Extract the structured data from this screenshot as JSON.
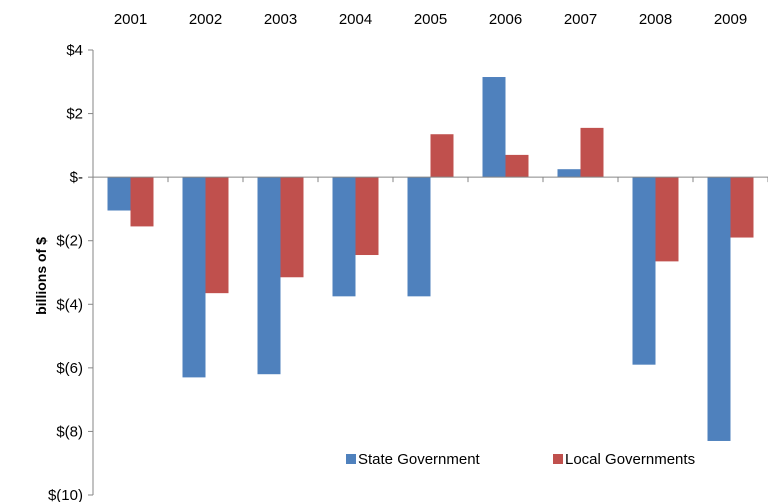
{
  "chart_data": {
    "type": "bar",
    "categories": [
      "2001",
      "2002",
      "2003",
      "2004",
      "2005",
      "2006",
      "2007",
      "2008",
      "2009"
    ],
    "series": [
      {
        "name": "State Government",
        "color": "#4f81bd",
        "values": [
          -1.05,
          -6.3,
          -6.2,
          -3.75,
          -3.75,
          3.15,
          0.25,
          -5.9,
          -8.3
        ]
      },
      {
        "name": "Local Governments",
        "color": "#c0504d",
        "values": [
          -1.55,
          -3.65,
          -3.15,
          -2.45,
          1.35,
          0.7,
          1.55,
          -2.65,
          -1.9
        ]
      }
    ],
    "title": "",
    "xlabel": "",
    "ylabel": "billions of $",
    "ylim": [
      -10,
      4
    ],
    "yticks": [
      4,
      2,
      0,
      -2,
      -4,
      -6,
      -8,
      -10
    ],
    "ytick_labels": [
      "$4",
      "$2",
      "$-",
      "$(2)",
      "$(4)",
      "$(6)",
      "$(8)",
      "$(10)"
    ],
    "category_axis_position": "top",
    "grid": false,
    "legend_position": "bottom-right"
  }
}
